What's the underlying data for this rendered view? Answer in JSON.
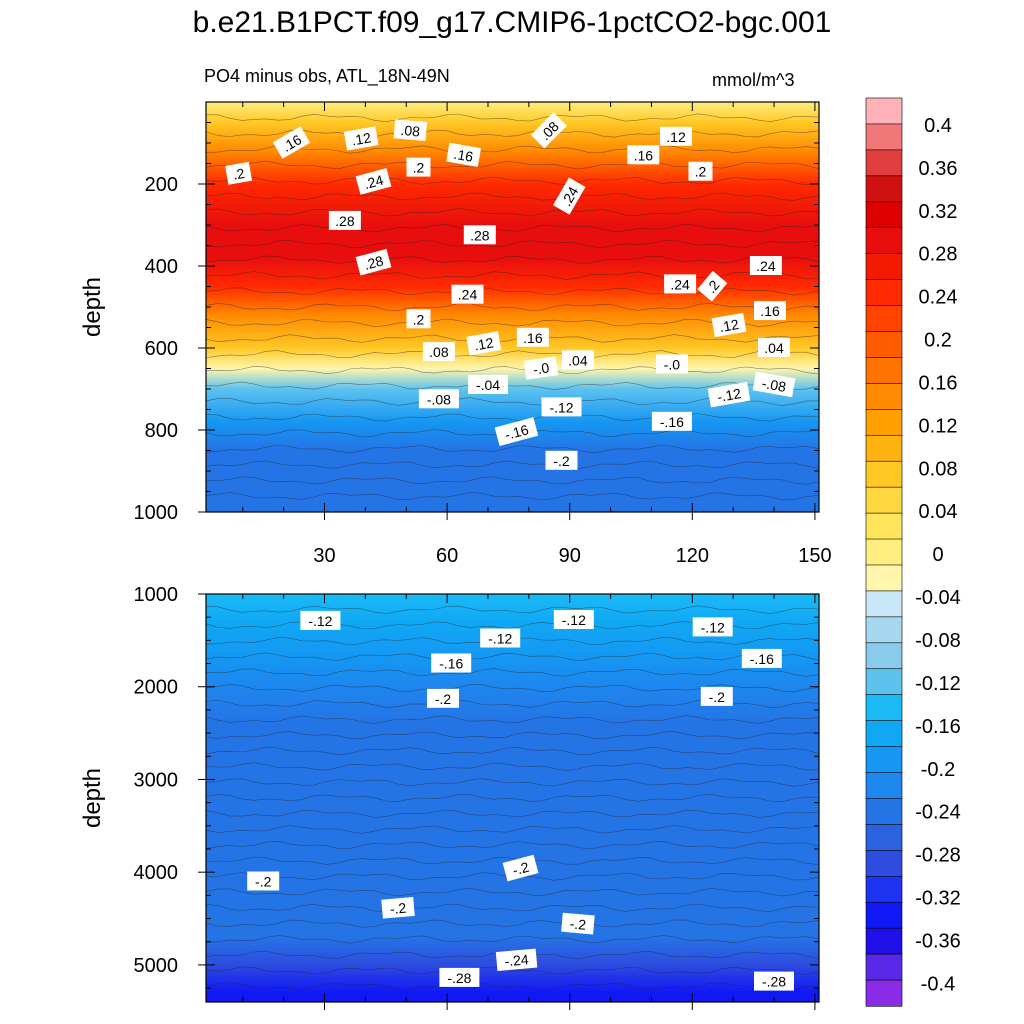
{
  "title": "b.e21.B1PCT.f09_g17.CMIP6-1pctCO2-bgc.001",
  "subtitle": "PO4 minus obs, ATL_18N-49N",
  "units": "mmol/m^3",
  "chart_data": [
    {
      "type": "heatmap",
      "panel": "top",
      "ylabel": "depth",
      "xlim": [
        1,
        151
      ],
      "ylim": [
        0,
        1000
      ],
      "y_reversed": true,
      "xticks": [
        30,
        60,
        90,
        120,
        150
      ],
      "xtick_labels": [
        "30",
        "60",
        "90",
        "120",
        "150"
      ],
      "yticks": [
        200,
        400,
        600,
        800,
        1000
      ],
      "ytick_labels": [
        "200",
        "400",
        "600",
        "800",
        "1000"
      ],
      "depth_profile": [
        {
          "depth": 0,
          "value": 0.03
        },
        {
          "depth": 50,
          "value": 0.08
        },
        {
          "depth": 120,
          "value": 0.16
        },
        {
          "depth": 200,
          "value": 0.24
        },
        {
          "depth": 300,
          "value": 0.29
        },
        {
          "depth": 380,
          "value": 0.29
        },
        {
          "depth": 450,
          "value": 0.24
        },
        {
          "depth": 520,
          "value": 0.16
        },
        {
          "depth": 600,
          "value": 0.08
        },
        {
          "depth": 650,
          "value": 0.0
        },
        {
          "depth": 700,
          "value": -0.08
        },
        {
          "depth": 780,
          "value": -0.15
        },
        {
          "depth": 850,
          "value": -0.2
        },
        {
          "depth": 1000,
          "value": -0.22
        }
      ],
      "contour_labels": [
        {
          "x": 9,
          "depth": 175,
          "text": ".2",
          "angle": -10
        },
        {
          "x": 22,
          "depth": 100,
          "text": ".16",
          "angle": -30
        },
        {
          "x": 39,
          "depth": 90,
          "text": ".12",
          "angle": -10
        },
        {
          "x": 51,
          "depth": 70,
          "text": ".08",
          "angle": 5
        },
        {
          "x": 64,
          "depth": 130,
          "text": ".16",
          "angle": 10
        },
        {
          "x": 85,
          "depth": 70,
          "text": ".08",
          "angle": -45
        },
        {
          "x": 108,
          "depth": 130,
          "text": ".16",
          "angle": 0
        },
        {
          "x": 116,
          "depth": 85,
          "text": ".12",
          "angle": 0
        },
        {
          "x": 122,
          "depth": 170,
          "text": ".2",
          "angle": 0
        },
        {
          "x": 42,
          "depth": 195,
          "text": ".24",
          "angle": -15
        },
        {
          "x": 53,
          "depth": 160,
          "text": ".2",
          "angle": 0
        },
        {
          "x": 90,
          "depth": 230,
          "text": ".24",
          "angle": -60
        },
        {
          "x": 35,
          "depth": 290,
          "text": ".28",
          "angle": 0
        },
        {
          "x": 68,
          "depth": 325,
          "text": ".28",
          "angle": 0
        },
        {
          "x": 42,
          "depth": 392,
          "text": ".28",
          "angle": -15
        },
        {
          "x": 65,
          "depth": 470,
          "text": ".24",
          "angle": 0
        },
        {
          "x": 53,
          "depth": 530,
          "text": ".2",
          "angle": 0
        },
        {
          "x": 117,
          "depth": 445,
          "text": ".24",
          "angle": 0
        },
        {
          "x": 125,
          "depth": 450,
          "text": ".2",
          "angle": -50
        },
        {
          "x": 138,
          "depth": 400,
          "text": ".24",
          "angle": 0
        },
        {
          "x": 139,
          "depth": 510,
          "text": ".16",
          "angle": 0
        },
        {
          "x": 129,
          "depth": 545,
          "text": ".12",
          "angle": -10
        },
        {
          "x": 81,
          "depth": 575,
          "text": ".16",
          "angle": 0
        },
        {
          "x": 69,
          "depth": 590,
          "text": ".12",
          "angle": -10
        },
        {
          "x": 58,
          "depth": 610,
          "text": ".08",
          "angle": 0
        },
        {
          "x": 140,
          "depth": 600,
          "text": ".04",
          "angle": 0
        },
        {
          "x": 92,
          "depth": 630,
          "text": ".04",
          "angle": 0
        },
        {
          "x": 83,
          "depth": 650,
          "text": "-.0",
          "angle": -8
        },
        {
          "x": 115,
          "depth": 640,
          "text": "-.0",
          "angle": 0
        },
        {
          "x": 70,
          "depth": 690,
          "text": "-.04",
          "angle": 0
        },
        {
          "x": 58,
          "depth": 725,
          "text": "-.08",
          "angle": 0
        },
        {
          "x": 140,
          "depth": 690,
          "text": "-.08",
          "angle": 10
        },
        {
          "x": 129,
          "depth": 715,
          "text": "-.12",
          "angle": -10
        },
        {
          "x": 88,
          "depth": 745,
          "text": "-.12",
          "angle": 0
        },
        {
          "x": 115,
          "depth": 780,
          "text": "-.16",
          "angle": 0
        },
        {
          "x": 77,
          "depth": 805,
          "text": "-.16",
          "angle": -15
        },
        {
          "x": 88,
          "depth": 875,
          "text": "-.2",
          "angle": 0
        }
      ]
    },
    {
      "type": "heatmap",
      "panel": "bottom",
      "ylabel": "depth",
      "xlim": [
        1,
        151
      ],
      "ylim": [
        1000,
        5400
      ],
      "y_reversed": true,
      "xticks": [
        30,
        60,
        90,
        120,
        150
      ],
      "yticks": [
        1000,
        2000,
        3000,
        4000,
        5000
      ],
      "ytick_labels": [
        "1000",
        "2000",
        "3000",
        "4000",
        "5000"
      ],
      "depth_profile": [
        {
          "depth": 1000,
          "value": -0.1
        },
        {
          "depth": 1300,
          "value": -0.12
        },
        {
          "depth": 1700,
          "value": -0.16
        },
        {
          "depth": 2000,
          "value": -0.19
        },
        {
          "depth": 2400,
          "value": -0.21
        },
        {
          "depth": 3500,
          "value": -0.21
        },
        {
          "depth": 4200,
          "value": -0.2
        },
        {
          "depth": 4700,
          "value": -0.22
        },
        {
          "depth": 5000,
          "value": -0.26
        },
        {
          "depth": 5300,
          "value": -0.31
        }
      ],
      "contour_labels": [
        {
          "x": 29,
          "depth": 1290,
          "text": "-.12",
          "angle": 0
        },
        {
          "x": 73,
          "depth": 1480,
          "text": "-.12",
          "angle": 0
        },
        {
          "x": 91,
          "depth": 1280,
          "text": "-.12",
          "angle": 0
        },
        {
          "x": 125,
          "depth": 1360,
          "text": "-.12",
          "angle": 0
        },
        {
          "x": 61,
          "depth": 1750,
          "text": "-.16",
          "angle": 0
        },
        {
          "x": 137,
          "depth": 1700,
          "text": "-.16",
          "angle": 0
        },
        {
          "x": 59,
          "depth": 2130,
          "text": "-.2",
          "angle": 0
        },
        {
          "x": 126,
          "depth": 2110,
          "text": "-.2",
          "angle": 0
        },
        {
          "x": 15,
          "depth": 4100,
          "text": "-.2",
          "angle": 0
        },
        {
          "x": 78,
          "depth": 3960,
          "text": "-.2",
          "angle": -15
        },
        {
          "x": 48,
          "depth": 4390,
          "text": "-.2",
          "angle": -5
        },
        {
          "x": 92,
          "depth": 4560,
          "text": "-.2",
          "angle": 5
        },
        {
          "x": 77,
          "depth": 4950,
          "text": "-.24",
          "angle": -5
        },
        {
          "x": 63,
          "depth": 5140,
          "text": "-.28",
          "angle": 0
        },
        {
          "x": 140,
          "depth": 5180,
          "text": "-.28",
          "angle": 0
        }
      ]
    }
  ],
  "colorbar": {
    "labels": [
      "0.4",
      "0.36",
      "0.32",
      "0.28",
      "0.24",
      "0.2",
      "0.16",
      "0.12",
      "0.08",
      "0.04",
      "0",
      "-0.04",
      "-0.08",
      "-0.12",
      "-0.16",
      "-0.2",
      "-0.24",
      "-0.28",
      "-0.32",
      "-0.36",
      "-0.4"
    ],
    "colors": [
      "#ffb3b8",
      "#f07878",
      "#e03f3f",
      "#cf1111",
      "#dd0000",
      "#e80e0e",
      "#f21a00",
      "#ff2a00",
      "#ff4400",
      "#ff5c00",
      "#ff7400",
      "#ff8a00",
      "#ffa000",
      "#ffb310",
      "#ffc825",
      "#ffd740",
      "#ffe45c",
      "#ffee80",
      "#fff6ac",
      "#c9e7f7",
      "#a6d9f0",
      "#8acbeb",
      "#5ec2ef",
      "#1bbaf6",
      "#10a8f5",
      "#1597f3",
      "#1e86ef",
      "#2574e6",
      "#2a63dd",
      "#2e4ce0",
      "#1e34f0",
      "#1018f5",
      "#2010e8",
      "#5a28e8",
      "#8a2be8"
    ]
  }
}
